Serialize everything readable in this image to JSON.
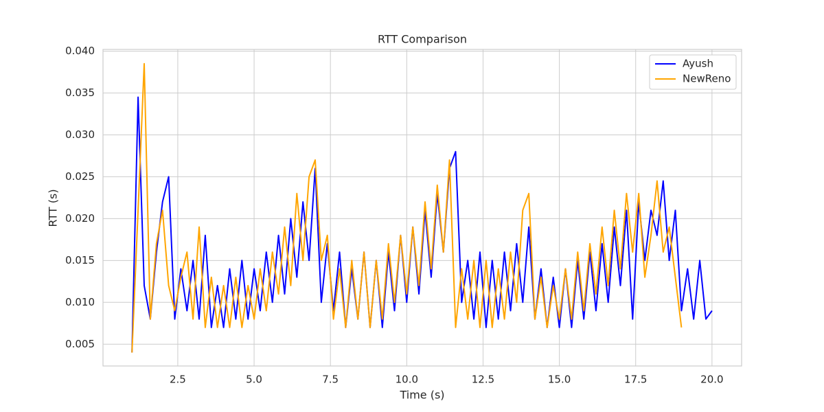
{
  "chart_data": {
    "type": "line",
    "title": "RTT Comparison",
    "x_label": "Time (s)",
    "y_label": "RTT (s)",
    "x": [
      1.0,
      1.2,
      1.4,
      1.6,
      1.8,
      2.0,
      2.2,
      2.4,
      2.6,
      2.8,
      3.0,
      3.2,
      3.4,
      3.6,
      3.8,
      4.0,
      4.2,
      4.4,
      4.6,
      4.8,
      5.0,
      5.2,
      5.4,
      5.6,
      5.8,
      6.0,
      6.2,
      6.4,
      6.6,
      6.8,
      7.0,
      7.2,
      7.4,
      7.6,
      7.8,
      8.0,
      8.2,
      8.4,
      8.6,
      8.8,
      9.0,
      9.2,
      9.4,
      9.6,
      9.8,
      10.0,
      10.2,
      10.4,
      10.6,
      10.8,
      11.0,
      11.2,
      11.4,
      11.6,
      11.8,
      12.0,
      12.2,
      12.4,
      12.6,
      12.8,
      13.0,
      13.2,
      13.4,
      13.6,
      13.8,
      14.0,
      14.2,
      14.4,
      14.6,
      14.8,
      15.0,
      15.2,
      15.4,
      15.6,
      15.8,
      16.0,
      16.2,
      16.4,
      16.6,
      16.8,
      17.0,
      17.2,
      17.4,
      17.6,
      17.8,
      18.0,
      18.2,
      18.4,
      18.6,
      18.8,
      19.0,
      19.2,
      19.4,
      19.6,
      19.8,
      20.0
    ],
    "series": [
      {
        "name": "Ayush",
        "color": "#0000ff",
        "values": [
          0.004,
          0.0345,
          0.012,
          0.008,
          0.016,
          0.022,
          0.025,
          0.008,
          0.014,
          0.009,
          0.015,
          0.008,
          0.018,
          0.007,
          0.012,
          0.007,
          0.014,
          0.008,
          0.015,
          0.008,
          0.014,
          0.009,
          0.016,
          0.01,
          0.018,
          0.011,
          0.02,
          0.013,
          0.022,
          0.015,
          0.026,
          0.01,
          0.017,
          0.009,
          0.016,
          0.007,
          0.014,
          0.008,
          0.016,
          0.007,
          0.015,
          0.007,
          0.016,
          0.009,
          0.018,
          0.01,
          0.019,
          0.011,
          0.021,
          0.013,
          0.023,
          0.016,
          0.026,
          0.028,
          0.01,
          0.015,
          0.008,
          0.016,
          0.007,
          0.015,
          0.008,
          0.016,
          0.009,
          0.017,
          0.01,
          0.019,
          0.008,
          0.014,
          0.007,
          0.013,
          0.007,
          0.014,
          0.007,
          0.015,
          0.008,
          0.016,
          0.009,
          0.017,
          0.01,
          0.019,
          0.012,
          0.021,
          0.008,
          0.022,
          0.015,
          0.021,
          0.018,
          0.0245,
          0.015,
          0.021,
          0.009,
          0.014,
          0.008,
          0.015,
          0.008,
          0.009
        ]
      },
      {
        "name": "NewReno",
        "color": "#ffa500",
        "values": [
          0.004,
          0.021,
          0.0385,
          0.008,
          0.017,
          0.021,
          0.012,
          0.009,
          0.013,
          0.016,
          0.008,
          0.019,
          0.007,
          0.013,
          0.007,
          0.012,
          0.007,
          0.013,
          0.007,
          0.012,
          0.008,
          0.014,
          0.009,
          0.016,
          0.011,
          0.019,
          0.012,
          0.023,
          0.015,
          0.025,
          0.027,
          0.015,
          0.018,
          0.008,
          0.014,
          0.007,
          0.015,
          0.008,
          0.016,
          0.007,
          0.015,
          0.008,
          0.017,
          0.01,
          0.018,
          0.011,
          0.019,
          0.012,
          0.022,
          0.014,
          0.024,
          0.016,
          0.027,
          0.007,
          0.014,
          0.008,
          0.015,
          0.007,
          0.015,
          0.007,
          0.014,
          0.008,
          0.016,
          0.01,
          0.021,
          0.023,
          0.008,
          0.013,
          0.007,
          0.012,
          0.008,
          0.014,
          0.008,
          0.016,
          0.009,
          0.017,
          0.011,
          0.019,
          0.012,
          0.021,
          0.014,
          0.023,
          0.016,
          0.023,
          0.013,
          0.018,
          0.0245,
          0.016,
          0.019,
          0.013,
          0.007,
          null,
          null,
          null,
          null,
          null
        ]
      }
    ],
    "xlim": [
      0.05,
      20.97
    ],
    "ylim": [
      0.0024,
      0.0402
    ],
    "xticks": [
      2.5,
      {
        "value": 5,
        "label": "5.0"
      },
      7.5,
      {
        "value": 10,
        "label": "10.0"
      },
      12.5,
      {
        "value": 15,
        "label": "15.0"
      },
      17.5,
      {
        "value": 20,
        "label": "20.0"
      }
    ],
    "yticks": [
      0.005,
      {
        "value": 0.01,
        "label": "0.010"
      },
      0.015,
      {
        "value": 0.02,
        "label": "0.020"
      },
      0.025,
      {
        "value": 0.03,
        "label": "0.030"
      },
      0.035,
      {
        "value": 0.04,
        "label": "0.040"
      }
    ],
    "grid": true,
    "legend": "upper-right"
  }
}
